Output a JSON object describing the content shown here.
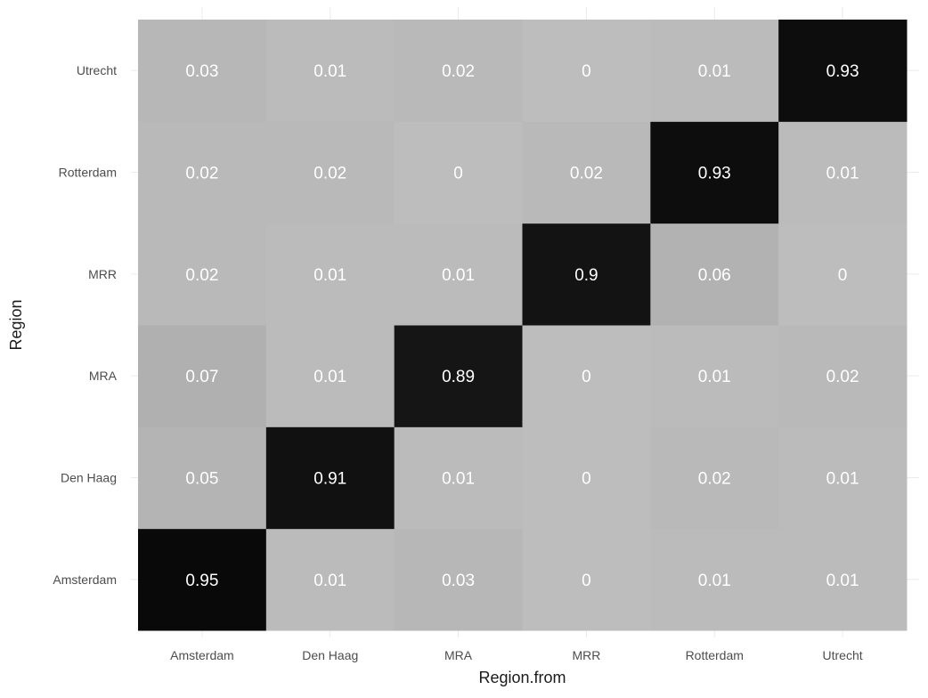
{
  "chart_data": {
    "type": "heatmap",
    "title": "",
    "xlabel": "Region.from",
    "ylabel": "Region",
    "x_categories": [
      "Amsterdam",
      "Den Haag",
      "MRA",
      "MRR",
      "Rotterdam",
      "Utrecht"
    ],
    "y_categories": [
      "Amsterdam",
      "Den Haag",
      "MRA",
      "MRR",
      "Rotterdam",
      "Utrecht"
    ],
    "values": [
      [
        0.95,
        0.01,
        0.03,
        0,
        0.01,
        0.01
      ],
      [
        0.05,
        0.91,
        0.01,
        0,
        0.02,
        0.01
      ],
      [
        0.07,
        0.01,
        0.89,
        0,
        0.01,
        0.02
      ],
      [
        0.02,
        0.01,
        0.01,
        0.9,
        0.06,
        0
      ],
      [
        0.02,
        0.02,
        0,
        0.02,
        0.93,
        0.01
      ],
      [
        0.03,
        0.01,
        0.02,
        0,
        0.01,
        0.93
      ]
    ],
    "value_range": [
      0,
      1
    ],
    "color_low": "#bdbdbd",
    "color_high": "#000000",
    "label_color": "#ffffff",
    "grid": true,
    "legend": "none"
  }
}
